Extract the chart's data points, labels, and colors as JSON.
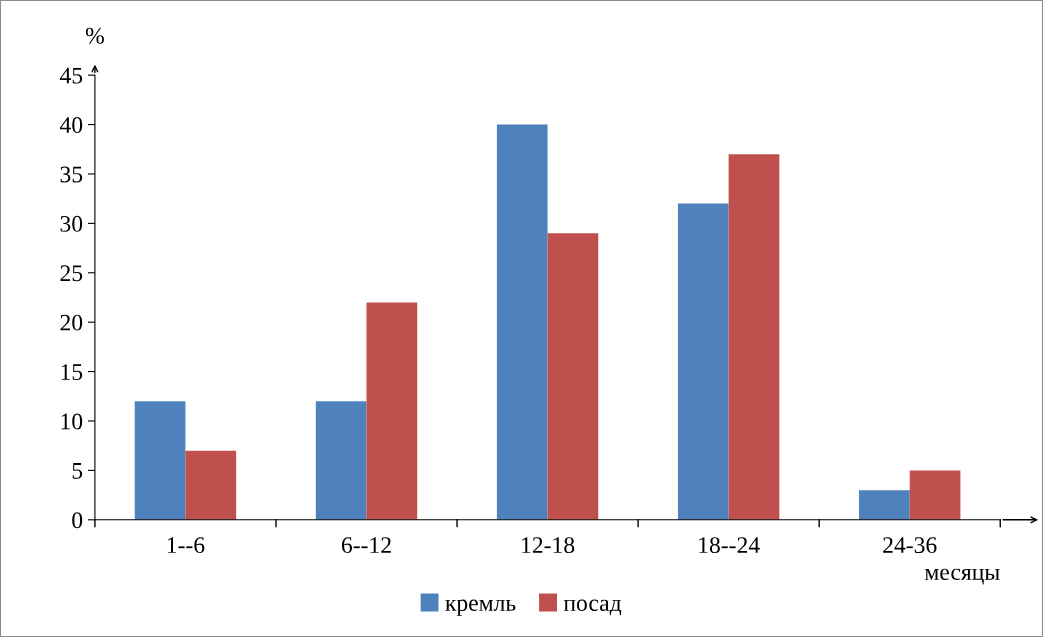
{
  "chart_data": {
    "type": "bar",
    "ylabel": "%",
    "xlabel": "месяцы",
    "categories": [
      "1--6",
      "6--12",
      "12-18",
      "18--24",
      "24-36"
    ],
    "series": [
      {
        "name": "кремль",
        "color": "#4f81bd",
        "values": [
          12,
          12,
          40,
          32,
          3
        ]
      },
      {
        "name": "посад",
        "color": "#c0504d",
        "values": [
          7,
          22,
          29,
          37,
          5
        ]
      }
    ],
    "ylim": [
      0,
      45
    ],
    "yticks": [
      0,
      5,
      10,
      15,
      20,
      25,
      30,
      35,
      40,
      45
    ],
    "grid": false,
    "legend": "bottom"
  }
}
